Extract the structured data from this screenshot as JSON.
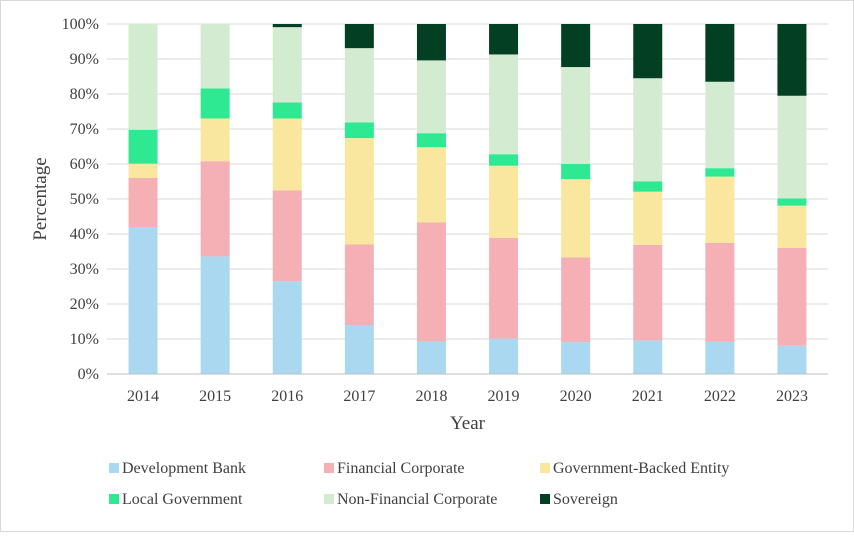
{
  "chart_data": {
    "type": "bar",
    "stacked": true,
    "percent_stacked": true,
    "xlabel": "Year",
    "ylabel": "Percentage",
    "ylim": [
      0,
      100
    ],
    "yticks": [
      "0%",
      "10%",
      "20%",
      "30%",
      "40%",
      "50%",
      "60%",
      "70%",
      "80%",
      "90%",
      "100%"
    ],
    "grid": "horizontal",
    "legend_position": "bottom",
    "categories": [
      "2014",
      "2015",
      "2016",
      "2017",
      "2018",
      "2019",
      "2020",
      "2021",
      "2022",
      "2023"
    ],
    "series": [
      {
        "name": "Development Bank",
        "color": "#a9d8f0",
        "values": [
          42.0,
          33.6,
          26.5,
          14.0,
          9.3,
          10.1,
          9.1,
          9.6,
          9.2,
          8.1
        ]
      },
      {
        "name": "Financial Corporate",
        "color": "#f4b0b5",
        "values": [
          14.0,
          27.2,
          26.0,
          23.0,
          34.0,
          28.8,
          24.2,
          27.3,
          28.3,
          27.9
        ]
      },
      {
        "name": "Government-Backed Entity",
        "color": "#f9e79f",
        "values": [
          4.1,
          12.2,
          20.5,
          30.4,
          21.5,
          20.6,
          22.4,
          15.2,
          18.9,
          12.1
        ]
      },
      {
        "name": "Local Government",
        "color": "#2ee892",
        "values": [
          9.7,
          8.6,
          4.6,
          4.5,
          4.0,
          3.3,
          4.3,
          2.9,
          2.4,
          2.1
        ]
      },
      {
        "name": "Non-Financial Corporate",
        "color": "#d3ebd1",
        "values": [
          30.2,
          18.4,
          21.5,
          21.2,
          20.8,
          28.5,
          27.7,
          29.5,
          24.7,
          29.3
        ]
      },
      {
        "name": "Sovereign",
        "color": "#033f23",
        "values": [
          0.0,
          0.0,
          0.9,
          6.9,
          10.4,
          8.7,
          12.3,
          15.5,
          16.5,
          20.5
        ]
      }
    ]
  }
}
